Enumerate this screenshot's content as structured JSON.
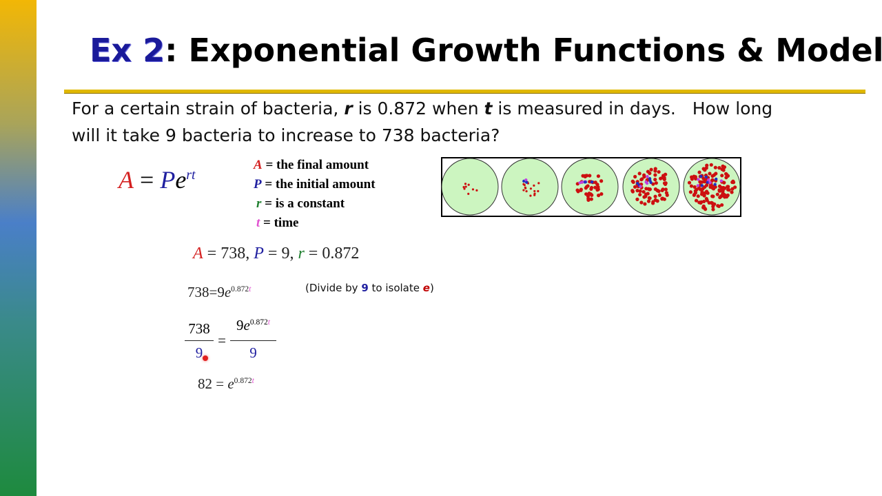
{
  "title": {
    "label": "Ex 2",
    "rest": ": Exponential Growth Functions & Models"
  },
  "problem": [
    "For a certain strain of bacteria, ",
    "r",
    " is 0.872 when ",
    "t",
    " is measured in days.   How long",
    "will it take 9 bacteria to increase to 738 bacteria?"
  ],
  "formula": [
    "A",
    "=",
    "P",
    "e",
    "rt"
  ],
  "definitions": [
    [
      "A",
      "= the final amount"
    ],
    [
      "P",
      "= the initial amount"
    ],
    [
      "r",
      "= is a constant"
    ],
    [
      "t",
      "= time"
    ]
  ],
  "givens": [
    "A",
    "=",
    "738,",
    "P",
    "=",
    "9,",
    "r",
    "=",
    "0.872"
  ],
  "step1": [
    "738",
    "=",
    "9",
    "e",
    "0.872",
    "t"
  ],
  "note": [
    "(Divide by ",
    "9",
    " to isolate ",
    "e",
    ")"
  ],
  "fraction": {
    "left_num": "738",
    "left_den": "9",
    "eq": "=",
    "right_num": [
      "9",
      "e",
      "0.872",
      "t"
    ],
    "right_den": "9"
  },
  "result": [
    "82",
    "=",
    "e",
    "0.872",
    "t"
  ]
}
